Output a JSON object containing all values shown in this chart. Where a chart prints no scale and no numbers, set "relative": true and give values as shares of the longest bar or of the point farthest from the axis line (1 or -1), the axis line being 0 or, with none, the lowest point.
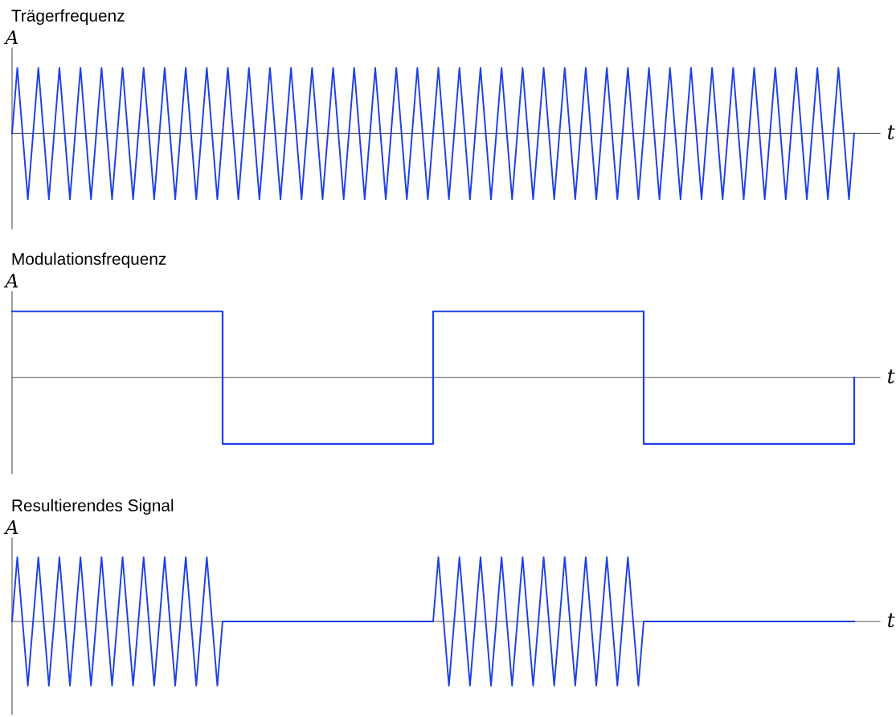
{
  "chart_data": [
    {
      "type": "line",
      "title": "Trägerfrequenz",
      "xlabel": "t",
      "ylabel": "A",
      "relative": true,
      "categories": [
        null,
        null,
        null,
        null,
        null,
        null,
        null,
        null,
        null,
        null,
        null,
        null,
        null,
        null,
        null,
        null,
        null,
        null,
        null,
        null,
        null,
        null,
        null,
        null,
        null,
        null,
        null,
        null,
        null,
        null,
        null,
        null,
        null,
        null,
        null,
        null,
        null,
        null,
        null,
        null,
        null,
        null,
        null,
        null,
        null,
        null,
        null,
        null,
        null,
        null,
        null,
        null,
        null,
        null,
        null,
        null,
        null,
        null,
        null,
        null,
        null,
        null,
        null,
        null,
        null,
        null,
        null,
        null,
        null,
        null,
        null,
        null,
        null,
        null,
        null,
        null,
        null,
        null,
        null,
        null,
        null,
        null,
        null,
        null,
        null,
        null,
        null,
        null,
        null,
        null,
        null,
        null,
        null,
        null,
        null,
        null,
        null,
        null,
        null,
        null,
        null,
        null,
        null,
        null,
        null,
        null,
        null,
        null,
        null,
        null,
        null,
        null,
        null,
        null,
        null,
        null,
        null,
        null,
        null,
        null,
        null,
        null,
        null,
        null,
        null,
        null,
        null,
        null,
        null,
        null,
        null,
        null,
        null,
        null,
        null,
        null,
        null,
        null,
        null,
        null,
        null,
        null,
        null,
        null,
        null,
        null,
        null,
        null,
        null,
        null,
        null,
        null,
        null,
        null,
        null,
        null,
        null,
        null,
        null,
        null,
        null
      ],
      "series": [
        {
          "color": "#1f3fe6",
          "values": [
            0,
            1,
            0,
            -1,
            0,
            1,
            0,
            -1,
            0,
            1,
            0,
            -1,
            0,
            1,
            0,
            -1,
            0,
            1,
            0,
            -1,
            0,
            1,
            0,
            -1,
            0,
            1,
            0,
            -1,
            0,
            1,
            0,
            -1,
            0,
            1,
            0,
            -1,
            0,
            1,
            0,
            -1,
            0,
            1,
            0,
            -1,
            0,
            1,
            0,
            -1,
            0,
            1,
            0,
            -1,
            0,
            1,
            0,
            -1,
            0,
            1,
            0,
            -1,
            0,
            1,
            0,
            -1,
            0,
            1,
            0,
            -1,
            0,
            1,
            0,
            -1,
            0,
            1,
            0,
            -1,
            0,
            1,
            0,
            -1,
            0,
            1,
            0,
            -1,
            0,
            1,
            0,
            -1,
            0,
            1,
            0,
            -1,
            0,
            1,
            0,
            -1,
            0,
            1,
            0,
            -1,
            0,
            1,
            0,
            -1,
            0,
            1,
            0,
            -1,
            0,
            1,
            0,
            -1,
            0,
            1,
            0,
            -1,
            0,
            1,
            0,
            -1,
            0,
            1,
            0,
            -1,
            0,
            1,
            0,
            -1,
            0,
            1,
            0,
            -1,
            0,
            1,
            0,
            -1,
            0,
            1,
            0,
            -1,
            0,
            1,
            0,
            -1,
            0,
            1,
            0,
            -1,
            0,
            1,
            0,
            -1,
            0,
            1,
            0,
            -1,
            0,
            1,
            0,
            -1,
            0
          ]
        }
      ]
    },
    {
      "type": "step",
      "title": "Modulationsfrequenz",
      "xlabel": "t",
      "ylabel": "A",
      "relative": true,
      "categories": [
        null,
        null,
        null,
        null,
        null,
        null,
        null,
        null,
        null,
        null,
        null,
        null,
        null,
        null,
        null,
        null,
        null,
        null,
        null,
        null,
        null,
        null,
        null,
        null,
        null,
        null,
        null,
        null,
        null,
        null,
        null,
        null,
        null,
        null,
        null,
        null,
        null,
        null,
        null,
        null,
        null,
        null,
        null,
        null,
        null,
        null,
        null,
        null,
        null,
        null,
        null,
        null,
        null,
        null,
        null,
        null,
        null,
        null,
        null,
        null,
        null,
        null,
        null,
        null,
        null,
        null,
        null,
        null,
        null,
        null,
        null,
        null,
        null,
        null,
        null,
        null,
        null,
        null,
        null,
        null,
        null,
        null,
        null,
        null,
        null,
        null,
        null,
        null,
        null,
        null,
        null,
        null,
        null,
        null,
        null,
        null,
        null,
        null,
        null,
        null,
        null,
        null,
        null,
        null,
        null,
        null,
        null,
        null,
        null,
        null,
        null,
        null,
        null,
        null,
        null,
        null,
        null,
        null,
        null,
        null,
        null,
        null,
        null,
        null,
        null,
        null,
        null,
        null,
        null,
        null,
        null,
        null,
        null,
        null,
        null,
        null,
        null,
        null,
        null,
        null,
        null,
        null,
        null,
        null,
        null,
        null,
        null,
        null,
        null,
        null,
        null,
        null,
        null,
        null,
        null,
        null,
        null,
        null,
        null,
        null,
        null
      ],
      "series": [
        {
          "color": "#1f3fe6",
          "values": [
            1,
            1,
            1,
            1,
            1,
            1,
            1,
            1,
            1,
            1,
            1,
            1,
            1,
            1,
            1,
            1,
            1,
            1,
            1,
            1,
            1,
            1,
            1,
            1,
            1,
            1,
            1,
            1,
            1,
            1,
            1,
            1,
            1,
            1,
            1,
            1,
            1,
            1,
            1,
            1,
            -1,
            -1,
            -1,
            -1,
            -1,
            -1,
            -1,
            -1,
            -1,
            -1,
            -1,
            -1,
            -1,
            -1,
            -1,
            -1,
            -1,
            -1,
            -1,
            -1,
            -1,
            -1,
            -1,
            -1,
            -1,
            -1,
            -1,
            -1,
            -1,
            -1,
            -1,
            -1,
            -1,
            -1,
            -1,
            -1,
            -1,
            -1,
            -1,
            -1,
            1,
            1,
            1,
            1,
            1,
            1,
            1,
            1,
            1,
            1,
            1,
            1,
            1,
            1,
            1,
            1,
            1,
            1,
            1,
            1,
            1,
            1,
            1,
            1,
            1,
            1,
            1,
            1,
            1,
            1,
            1,
            1,
            1,
            1,
            1,
            1,
            1,
            1,
            1,
            1,
            -1,
            -1,
            -1,
            -1,
            -1,
            -1,
            -1,
            -1,
            -1,
            -1,
            -1,
            -1,
            -1,
            -1,
            -1,
            -1,
            -1,
            -1,
            -1,
            -1,
            -1,
            -1,
            -1,
            -1,
            -1,
            -1,
            -1,
            -1,
            -1,
            -1,
            -1,
            -1,
            -1,
            -1,
            -1,
            -1,
            -1,
            -1,
            -1,
            -1,
            0
          ]
        }
      ]
    },
    {
      "type": "line",
      "title": "Resultierendes Signal",
      "xlabel": "t",
      "ylabel": "A",
      "relative": true,
      "categories": [
        null,
        null,
        null,
        null,
        null,
        null,
        null,
        null,
        null,
        null,
        null,
        null,
        null,
        null,
        null,
        null,
        null,
        null,
        null,
        null,
        null,
        null,
        null,
        null,
        null,
        null,
        null,
        null,
        null,
        null,
        null,
        null,
        null,
        null,
        null,
        null,
        null,
        null,
        null,
        null,
        null,
        null,
        null,
        null,
        null,
        null,
        null,
        null,
        null,
        null,
        null,
        null,
        null,
        null,
        null,
        null,
        null,
        null,
        null,
        null,
        null,
        null,
        null,
        null,
        null,
        null,
        null,
        null,
        null,
        null,
        null,
        null,
        null,
        null,
        null,
        null,
        null,
        null,
        null,
        null,
        null,
        null,
        null,
        null,
        null,
        null,
        null,
        null,
        null,
        null,
        null,
        null,
        null,
        null,
        null,
        null,
        null,
        null,
        null,
        null,
        null,
        null,
        null,
        null,
        null,
        null,
        null,
        null,
        null,
        null,
        null,
        null,
        null,
        null,
        null,
        null,
        null,
        null,
        null,
        null,
        null,
        null,
        null,
        null,
        null,
        null,
        null,
        null,
        null,
        null,
        null,
        null,
        null,
        null,
        null,
        null,
        null,
        null,
        null,
        null,
        null,
        null,
        null,
        null,
        null,
        null,
        null,
        null,
        null,
        null,
        null,
        null,
        null,
        null,
        null,
        null,
        null,
        null,
        null,
        null,
        null
      ],
      "series": [
        {
          "color": "#1f3fe6",
          "values": [
            0,
            1,
            0,
            -1,
            0,
            1,
            0,
            -1,
            0,
            1,
            0,
            -1,
            0,
            1,
            0,
            -1,
            0,
            1,
            0,
            -1,
            0,
            1,
            0,
            -1,
            0,
            1,
            0,
            -1,
            0,
            1,
            0,
            -1,
            0,
            1,
            0,
            -1,
            0,
            1,
            0,
            -1,
            0,
            0,
            0,
            0,
            0,
            0,
            0,
            0,
            0,
            0,
            0,
            0,
            0,
            0,
            0,
            0,
            0,
            0,
            0,
            0,
            0,
            0,
            0,
            0,
            0,
            0,
            0,
            0,
            0,
            0,
            0,
            0,
            0,
            0,
            0,
            0,
            0,
            0,
            0,
            0,
            0,
            1,
            0,
            -1,
            0,
            1,
            0,
            -1,
            0,
            1,
            0,
            -1,
            0,
            1,
            0,
            -1,
            0,
            1,
            0,
            -1,
            0,
            1,
            0,
            -1,
            0,
            1,
            0,
            -1,
            0,
            1,
            0,
            -1,
            0,
            1,
            0,
            -1,
            0,
            1,
            0,
            -1,
            0,
            0,
            0,
            0,
            0,
            0,
            0,
            0,
            0,
            0,
            0,
            0,
            0,
            0,
            0,
            0,
            0,
            0,
            0,
            0,
            0,
            0,
            0,
            0,
            0,
            0,
            0,
            0,
            0,
            0,
            0,
            0,
            0,
            0,
            0,
            0,
            0,
            0,
            0,
            0,
            0
          ]
        }
      ]
    }
  ]
}
